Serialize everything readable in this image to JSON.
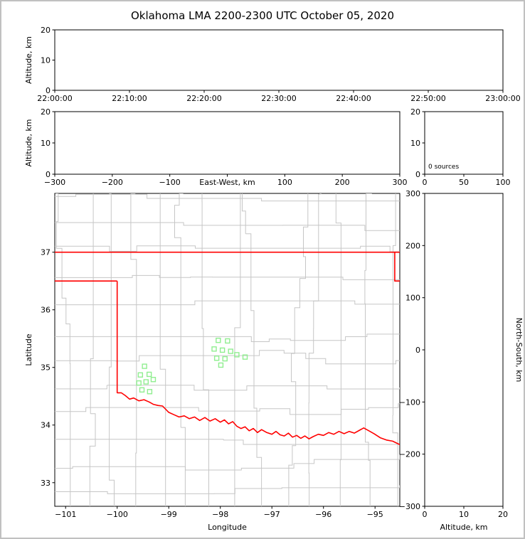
{
  "title": "Oklahoma LMA 2200-2300 UTC October 05, 2020",
  "colors": {
    "background": "#ffffff",
    "frame_border": "#c0c0c0",
    "axis": "#000000",
    "state_border": "#ff0000",
    "county_lines": "#c6c6c6",
    "station_marker": "#90ee90"
  },
  "chart_data": [
    {
      "id": "time_height",
      "type": "scatter",
      "xlabel": "",
      "ylabel": "Altitude, km",
      "x_tick_labels": [
        "22:00:00",
        "22:10:00",
        "22:20:00",
        "22:30:00",
        "22:40:00",
        "22:50:00",
        "23:00:00"
      ],
      "ylim": [
        0,
        20
      ],
      "y_ticks": [
        0,
        10,
        20
      ],
      "points": []
    },
    {
      "id": "ew_height",
      "type": "scatter",
      "xlabel": "East-West, km",
      "xlabel_inline": true,
      "ylabel": "Altitude, km",
      "xlim": [
        -300,
        300
      ],
      "x_ticks": [
        -300,
        -200,
        -100,
        0,
        100,
        200,
        300
      ],
      "ylim": [
        0,
        20
      ],
      "y_ticks": [
        0,
        10,
        20
      ],
      "points": []
    },
    {
      "id": "src_hist",
      "type": "histogram",
      "annotation": "0 sources",
      "xlim": [
        0,
        100
      ],
      "x_ticks": [
        0,
        50,
        100
      ],
      "ylim": [
        0,
        20
      ],
      "y_ticks": [
        0,
        10,
        20
      ],
      "values": []
    },
    {
      "id": "plan_map",
      "type": "map-scatter",
      "xlabel": "Longitude",
      "ylabel": "Latitude",
      "xlim": [
        -101.21,
        -94.52
      ],
      "ylim": [
        32.59,
        38.02
      ],
      "x_ticks": [
        -101,
        -100,
        -99,
        -98,
        -97,
        -96,
        -95
      ],
      "y_ticks": [
        33,
        34,
        35,
        36,
        37
      ],
      "stations": [
        [
          -99.47,
          35.02
        ],
        [
          -99.55,
          34.87
        ],
        [
          -99.38,
          34.88
        ],
        [
          -99.58,
          34.73
        ],
        [
          -99.44,
          34.75
        ],
        [
          -99.3,
          34.79
        ],
        [
          -99.52,
          34.61
        ],
        [
          -99.37,
          34.58
        ],
        [
          -98.04,
          35.47
        ],
        [
          -97.86,
          35.46
        ],
        [
          -98.12,
          35.32
        ],
        [
          -97.96,
          35.3
        ],
        [
          -97.8,
          35.28
        ],
        [
          -98.07,
          35.16
        ],
        [
          -97.91,
          35.15
        ],
        [
          -97.68,
          35.22
        ],
        [
          -97.99,
          35.04
        ],
        [
          -97.52,
          35.18
        ]
      ],
      "state_border": [
        [
          [
            -102.0,
            37.0
          ],
          [
            -94.0,
            37.0
          ]
        ],
        [
          [
            -102.0,
            36.5
          ],
          [
            -100.0,
            36.5
          ]
        ],
        [
          [
            -100.0,
            36.5
          ],
          [
            -100.0,
            34.555
          ]
        ],
        [
          [
            -94.618,
            37.0
          ],
          [
            -94.618,
            36.5
          ],
          [
            -94.43,
            36.5
          ],
          [
            -94.43,
            33.63
          ]
        ],
        [
          [
            -100.0,
            34.56
          ],
          [
            -99.92,
            34.56
          ],
          [
            -99.84,
            34.51
          ],
          [
            -99.76,
            34.45
          ],
          [
            -99.68,
            34.47
          ],
          [
            -99.58,
            34.42
          ],
          [
            -99.48,
            34.44
          ],
          [
            -99.38,
            34.4
          ],
          [
            -99.3,
            34.36
          ],
          [
            -99.21,
            34.34
          ],
          [
            -99.12,
            34.33
          ],
          [
            -99.0,
            34.22
          ],
          [
            -98.9,
            34.18
          ],
          [
            -98.8,
            34.14
          ],
          [
            -98.7,
            34.16
          ],
          [
            -98.6,
            34.11
          ],
          [
            -98.5,
            34.14
          ],
          [
            -98.4,
            34.08
          ],
          [
            -98.3,
            34.13
          ],
          [
            -98.2,
            34.07
          ],
          [
            -98.1,
            34.11
          ],
          [
            -98.0,
            34.05
          ],
          [
            -97.92,
            34.09
          ],
          [
            -97.84,
            34.02
          ],
          [
            -97.76,
            34.06
          ],
          [
            -97.68,
            33.98
          ],
          [
            -97.6,
            33.94
          ],
          [
            -97.52,
            33.97
          ],
          [
            -97.44,
            33.9
          ],
          [
            -97.36,
            33.94
          ],
          [
            -97.28,
            33.87
          ],
          [
            -97.2,
            33.92
          ],
          [
            -97.1,
            33.87
          ],
          [
            -97.0,
            33.84
          ],
          [
            -96.92,
            33.89
          ],
          [
            -96.84,
            33.83
          ],
          [
            -96.76,
            33.81
          ],
          [
            -96.68,
            33.86
          ],
          [
            -96.6,
            33.79
          ],
          [
            -96.52,
            33.82
          ],
          [
            -96.44,
            33.77
          ],
          [
            -96.36,
            33.81
          ],
          [
            -96.28,
            33.76
          ],
          [
            -96.2,
            33.8
          ],
          [
            -96.1,
            33.84
          ],
          [
            -96.0,
            33.82
          ],
          [
            -95.9,
            33.87
          ],
          [
            -95.8,
            33.84
          ],
          [
            -95.7,
            33.89
          ],
          [
            -95.6,
            33.85
          ],
          [
            -95.5,
            33.89
          ],
          [
            -95.4,
            33.86
          ],
          [
            -95.3,
            33.91
          ],
          [
            -95.22,
            33.95
          ],
          [
            -95.12,
            33.9
          ],
          [
            -95.02,
            33.85
          ],
          [
            -94.9,
            33.78
          ],
          [
            -94.78,
            33.74
          ],
          [
            -94.66,
            33.72
          ],
          [
            -94.52,
            33.66
          ],
          [
            -94.43,
            33.64
          ]
        ]
      ],
      "county_grid": {
        "seed": 42,
        "lon_step": 0.5,
        "lat_step": 0.44
      }
    },
    {
      "id": "ns_height",
      "type": "scatter",
      "xlabel": "Altitude, km",
      "ylabel_right": "North-South, km",
      "xlim": [
        0,
        20
      ],
      "x_ticks": [
        0,
        10,
        20
      ],
      "ylim": [
        -300,
        300
      ],
      "y_ticks": [
        -300,
        -200,
        -100,
        0,
        100,
        200,
        300
      ],
      "points": []
    }
  ]
}
